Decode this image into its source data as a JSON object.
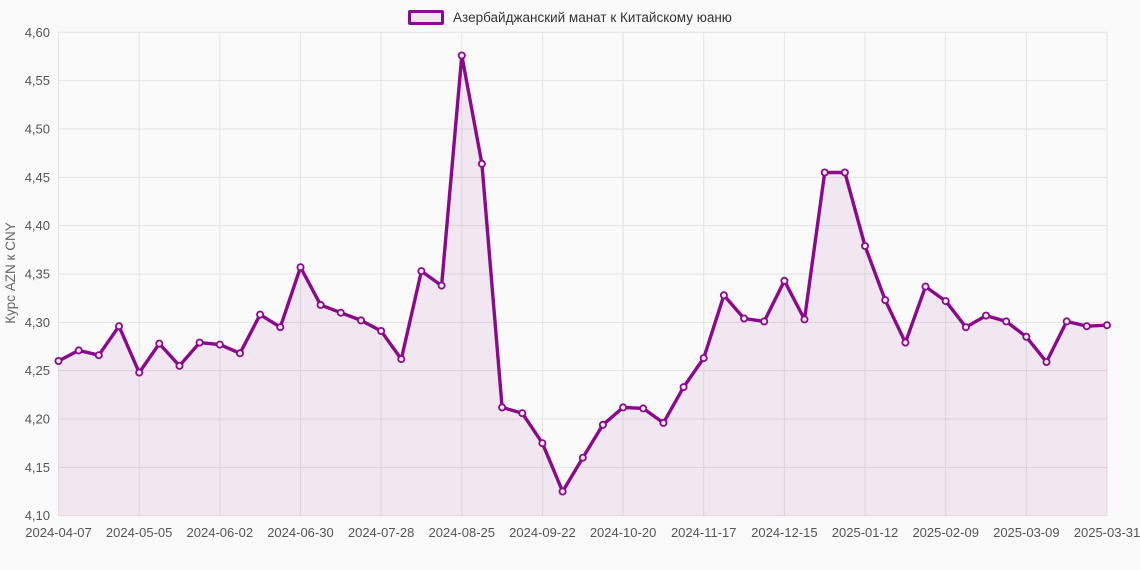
{
  "colors": {
    "background": "#fafafa",
    "line": "#8b0a8b",
    "area_fill": "rgba(139,10,139,0.08)",
    "marker_fill": "#f4e8f3",
    "grid": "#e3e3e3",
    "tick_text": "#555555",
    "axis_title_text": "#666666",
    "legend_text": "#333333",
    "legend_swatch_fill": "#f2e4f0"
  },
  "chart_data": {
    "type": "area",
    "legend": "Азербайджанский манат к Китайскому юаню",
    "ylabel": "Курс AZN к CNY",
    "ylim": [
      4.1,
      4.6
    ],
    "y_tick_step": 0.05,
    "y_tick_labels": [
      "4,60",
      "4,55",
      "4,50",
      "4,45",
      "4,40",
      "4,35",
      "4,30",
      "4,25",
      "4,20",
      "4,15",
      "4,10"
    ],
    "x_tick_labels": [
      "2024-04-07",
      "2024-05-05",
      "2024-06-02",
      "2024-06-30",
      "2024-07-28",
      "2024-08-25",
      "2024-09-22",
      "2024-10-20",
      "2024-11-17",
      "2024-12-15",
      "2025-01-12",
      "2025-02-09",
      "2025-03-09",
      "2025-03-31"
    ],
    "x_tick_point_indices": [
      0,
      4,
      8,
      12,
      16,
      20,
      24,
      28,
      32,
      36,
      40,
      44,
      48,
      52
    ],
    "grid": true,
    "legend_position": "top-center",
    "values": [
      4.26,
      4.271,
      4.266,
      4.296,
      4.248,
      4.278,
      4.255,
      4.279,
      4.277,
      4.268,
      4.308,
      4.295,
      4.357,
      4.318,
      4.31,
      4.302,
      4.291,
      4.262,
      4.353,
      4.338,
      4.576,
      4.464,
      4.212,
      4.206,
      4.175,
      4.125,
      4.16,
      4.194,
      4.212,
      4.211,
      4.196,
      4.233,
      4.263,
      4.328,
      4.304,
      4.301,
      4.343,
      4.303,
      4.455,
      4.455,
      4.379,
      4.323,
      4.279,
      4.337,
      4.322,
      4.295,
      4.307,
      4.301,
      4.285,
      4.259,
      4.301,
      4.296,
      4.297
    ]
  }
}
